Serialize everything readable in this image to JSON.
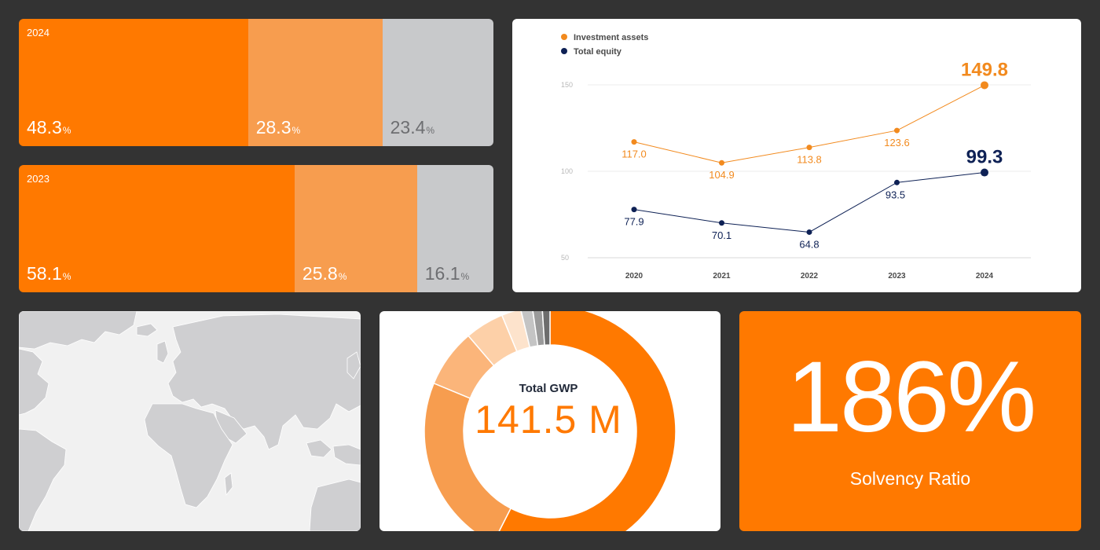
{
  "colors": {
    "orange": "#ff7900",
    "light_orange": "#f79d4f",
    "gray": "#c8c9cb",
    "navy": "#0e2155"
  },
  "bars": [
    {
      "year": "2024",
      "segments": [
        {
          "value": 48.3,
          "text": "48.3",
          "unit": "%",
          "color": "#ff7900"
        },
        {
          "value": 28.3,
          "text": "28.3",
          "unit": "%",
          "color": "#f79d4f"
        },
        {
          "value": 23.4,
          "text": "23.4",
          "unit": "%",
          "color": "#c8c9cb"
        }
      ]
    },
    {
      "year": "2023",
      "segments": [
        {
          "value": 58.1,
          "text": "58.1",
          "unit": "%",
          "color": "#ff7900"
        },
        {
          "value": 25.8,
          "text": "25.8",
          "unit": "%",
          "color": "#f79d4f"
        },
        {
          "value": 16.1,
          "text": "16.1",
          "unit": "%",
          "color": "#c8c9cb"
        }
      ]
    }
  ],
  "chart_data": {
    "type": "line",
    "x": [
      "2020",
      "2021",
      "2022",
      "2023",
      "2024"
    ],
    "series": [
      {
        "name": "Investment assets",
        "color": "#f28a1e",
        "values": [
          117.0,
          104.9,
          113.8,
          123.6,
          149.8
        ],
        "labels": [
          "117.0",
          "104.9",
          "113.8",
          "123.6",
          "149.8"
        ]
      },
      {
        "name": "Total equity",
        "color": "#0e2155",
        "values": [
          77.9,
          70.1,
          64.8,
          93.5,
          99.3
        ],
        "labels": [
          "77.9",
          "70.1",
          "64.8",
          "93.5",
          "99.3"
        ]
      }
    ],
    "yticks": [
      "150",
      "100",
      "50"
    ],
    "ytick_values": [
      150,
      100,
      50
    ],
    "ylim": [
      50,
      150
    ],
    "grid": true,
    "legend_position": "top-left"
  },
  "donut": {
    "title": "Total GWP",
    "value": "141.5 M",
    "slices": [
      {
        "value": 46.0,
        "color": "#ff7900"
      },
      {
        "value": 19.0,
        "color": "#f79d4f"
      },
      {
        "value": 6.0,
        "color": "#fbb57a"
      },
      {
        "value": 4.0,
        "color": "#fdd0a8"
      },
      {
        "value": 2.0,
        "color": "#fde3cc"
      },
      {
        "value": 1.2,
        "color": "#c4c4c4"
      },
      {
        "value": 1.0,
        "color": "#9a9a9a"
      },
      {
        "value": 0.8,
        "color": "#6d6d6d"
      }
    ]
  },
  "solvency": {
    "value": "186%",
    "label": "Solvency Ratio"
  }
}
